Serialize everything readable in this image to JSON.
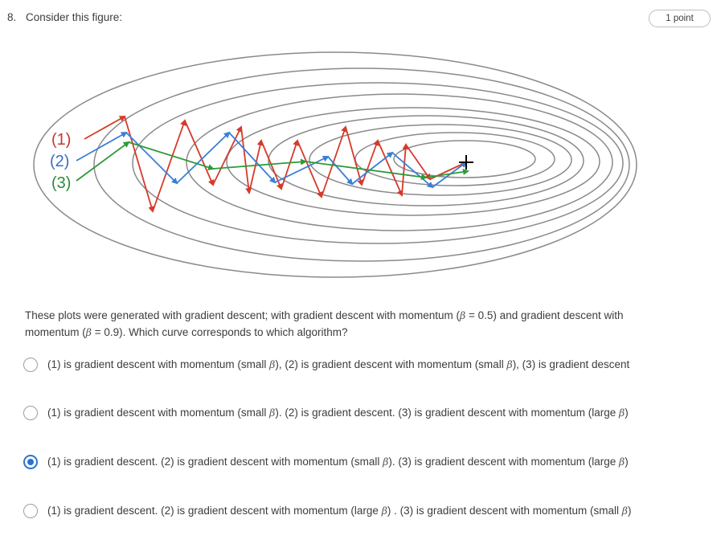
{
  "question": {
    "number": "8.",
    "title": "Consider this figure:",
    "points": "1 point"
  },
  "figure": {
    "labels": [
      "(1)",
      "(2)",
      "(3)"
    ],
    "colors": {
      "curve1": "#d63a2a",
      "curve2": "#3a7fd4",
      "curve3": "#2e9a3a",
      "contour": "#8a8a8a",
      "label1": "#c0392b",
      "label2": "#3a6fc4",
      "label3": "#2e8a3a"
    },
    "target_icon": "plus-marker-icon"
  },
  "prompt": {
    "part1": "These plots were generated with gradient descent; with gradient descent with momentum (",
    "beta1": "β",
    "part2": " = 0.5) and gradient descent with momentum (",
    "beta2": "β",
    "part3": " = 0.9). Which curve corresponds to which algorithm?"
  },
  "options": [
    {
      "s1": "(1) is gradient descent with momentum (small ",
      "b1": "β",
      "s2": "), (2) is gradient descent with momentum (small ",
      "b2": "β",
      "s3": "), (3) is gradient descent",
      "selected": false
    },
    {
      "s1": "(1) is gradient descent with momentum (small ",
      "b1": "β",
      "s2": "). (2) is gradient descent. (3) is gradient descent with momentum (large ",
      "b2": "β",
      "s3": ")",
      "selected": false
    },
    {
      "s1": "(1) is gradient descent. (2) is gradient descent with momentum (small ",
      "b1": "β",
      "s2": "). (3) is gradient descent with momentum (large ",
      "b2": "β",
      "s3": ")",
      "selected": true
    },
    {
      "s1": "(1) is gradient descent. (2) is gradient descent with momentum (large ",
      "b1": "β",
      "s2": ") . (3) is gradient descent with momentum (small ",
      "b2": "β",
      "s3": ")",
      "selected": false
    }
  ]
}
